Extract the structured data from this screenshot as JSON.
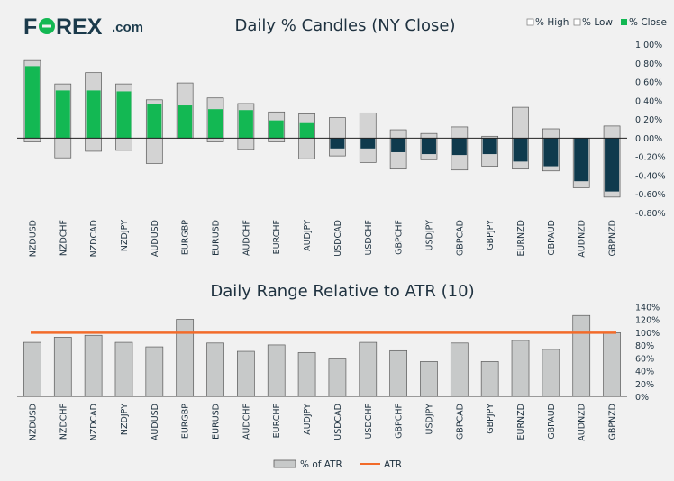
{
  "logo": {
    "text_pre": "F",
    "text_post": "REX",
    "suffix": ".com",
    "brand_color": "#1b3a4b",
    "accent_color": "#13b853"
  },
  "colors": {
    "positive": "#13b853",
    "negative": "#0f3a4d",
    "range_fill": "#d3d3d3",
    "range_stroke": "#5a5a5a",
    "atr_bar": "#c7c9c9",
    "atr_line": "#f26b2a",
    "text": "#1f3240",
    "axis": "#222222"
  },
  "chart_data": [
    {
      "type": "bar",
      "title": "Daily % Candles (NY Close)",
      "legend": [
        "% High",
        "% Low",
        "% Close"
      ],
      "legend_position": "top-right",
      "categories": [
        "NZDUSD",
        "NZDCHF",
        "NZDCAD",
        "NZDJPY",
        "AUDUSD",
        "EURGBP",
        "EURUSD",
        "AUDCHF",
        "EURCHF",
        "AUDJPY",
        "USDCAD",
        "USDCHF",
        "GBPCHF",
        "USDJPY",
        "GBPCAD",
        "GBPJPY",
        "EURNZD",
        "GBPAUD",
        "AUDNZD",
        "GBPNZD"
      ],
      "series": [
        {
          "name": "% High",
          "values": [
            0.83,
            0.58,
            0.7,
            0.58,
            0.41,
            0.59,
            0.43,
            0.37,
            0.28,
            0.26,
            0.22,
            0.27,
            0.09,
            0.05,
            0.12,
            0.02,
            0.33,
            0.1,
            -0.01,
            0.13
          ]
        },
        {
          "name": "% Low",
          "values": [
            -0.04,
            -0.21,
            -0.14,
            -0.13,
            -0.27,
            0.0,
            -0.04,
            -0.12,
            -0.04,
            -0.22,
            -0.19,
            -0.26,
            -0.33,
            -0.23,
            -0.34,
            -0.3,
            -0.33,
            -0.35,
            -0.53,
            -0.63
          ]
        },
        {
          "name": "% Close",
          "values": [
            0.77,
            0.51,
            0.51,
            0.5,
            0.36,
            0.35,
            0.31,
            0.3,
            0.19,
            0.17,
            -0.11,
            -0.11,
            -0.15,
            -0.17,
            -0.18,
            -0.17,
            -0.25,
            -0.3,
            -0.46,
            -0.57
          ]
        }
      ],
      "ylim": [
        -0.8,
        1.0
      ],
      "yticks": [
        "1.00%",
        "0.80%",
        "0.60%",
        "0.40%",
        "0.20%",
        "0.00%",
        "-0.20%",
        "-0.40%",
        "-0.60%",
        "-0.80%"
      ]
    },
    {
      "type": "bar",
      "title": "Daily Range Relative to ATR (10)",
      "legend": [
        "% of ATR",
        "ATR"
      ],
      "legend_position": "bottom-center",
      "categories": [
        "NZDUSD",
        "NZDCHF",
        "NZDCAD",
        "NZDJPY",
        "AUDUSD",
        "EURGBP",
        "EURUSD",
        "AUDCHF",
        "EURCHF",
        "AUDJPY",
        "USDCAD",
        "USDCHF",
        "GBPCHF",
        "USDJPY",
        "GBPCAD",
        "GBPJPY",
        "EURNZD",
        "GBPAUD",
        "AUDNZD",
        "GBPNZD"
      ],
      "series": [
        {
          "name": "% of ATR",
          "values": [
            85,
            93,
            96,
            85,
            78,
            121,
            84,
            71,
            81,
            69,
            59,
            85,
            72,
            55,
            84,
            55,
            88,
            74,
            127,
            100
          ]
        },
        {
          "name": "ATR",
          "values": [
            100,
            100,
            100,
            100,
            100,
            100,
            100,
            100,
            100,
            100,
            100,
            100,
            100,
            100,
            100,
            100,
            100,
            100,
            100,
            100
          ]
        }
      ],
      "ylim": [
        0,
        140
      ],
      "yticks": [
        "140%",
        "120%",
        "100%",
        "80%",
        "60%",
        "40%",
        "20%",
        "0%"
      ]
    }
  ]
}
